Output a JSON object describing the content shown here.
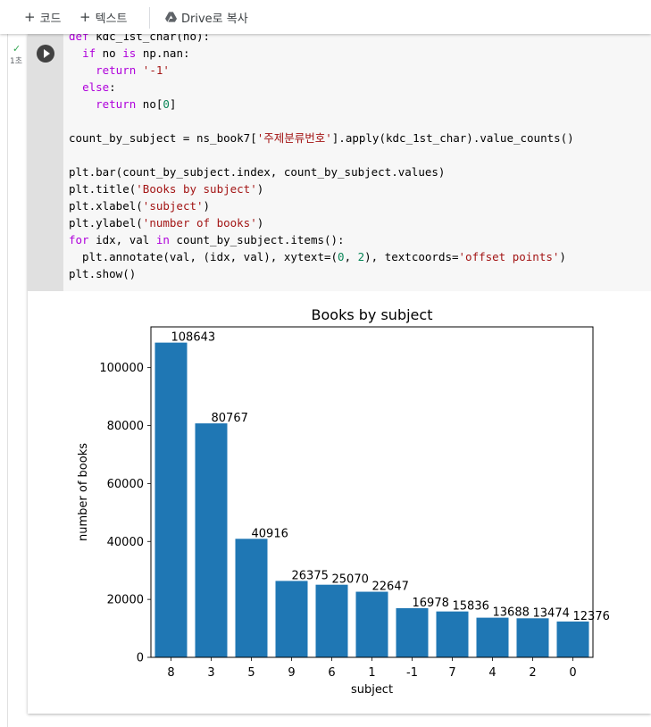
{
  "toolbar": {
    "add_code": "코드",
    "add_text": "텍스트",
    "copy_drive": "Drive로 복사"
  },
  "cell": {
    "status_icon": "check-icon",
    "runtime": "1초",
    "code_lines": [
      "def kdc_1st_char(no):",
      "  if no is np.nan:",
      "    return '-1'",
      "  else:",
      "    return no[0]",
      "",
      "count_by_subject = ns_book7['주제분류번호'].apply(kdc_1st_char).value_counts()",
      "",
      "plt.bar(count_by_subject.index, count_by_subject.values)",
      "plt.title('Books by subject')",
      "plt.xlabel('subject')",
      "plt.ylabel('number of books')",
      "for idx, val in count_by_subject.items():",
      "  plt.annotate(val, (idx, val), xytext=(0, 2), textcoords='offset points')",
      "plt.show()"
    ]
  },
  "chart_data": {
    "type": "bar",
    "title": "Books by subject",
    "xlabel": "subject",
    "ylabel": "number of books",
    "categories": [
      "8",
      "3",
      "5",
      "9",
      "6",
      "1",
      "-1",
      "7",
      "4",
      "2",
      "0"
    ],
    "values": [
      108643,
      80767,
      40916,
      26375,
      25070,
      22647,
      16978,
      15836,
      13688,
      13474,
      12376
    ],
    "yticks": [
      0,
      20000,
      40000,
      60000,
      80000,
      100000
    ],
    "ylim": [
      0,
      114075
    ],
    "bar_color": "#1f77b4",
    "grid": false
  }
}
